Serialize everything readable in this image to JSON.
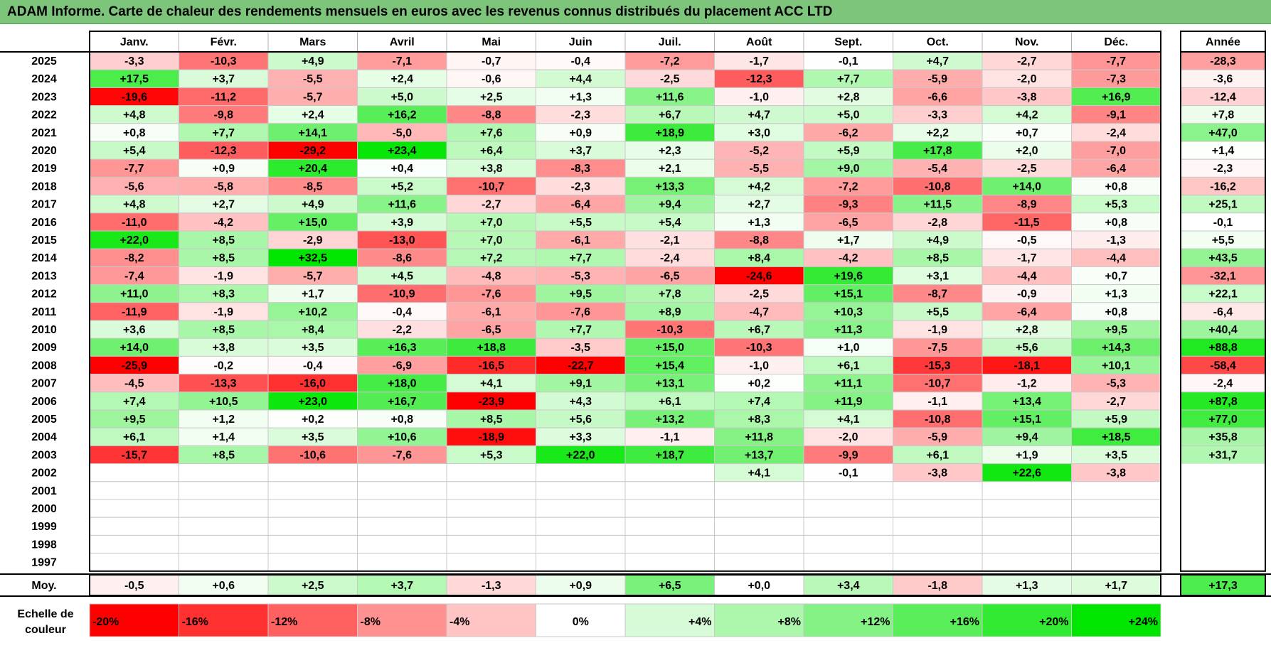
{
  "title": "ADAM Informe. Carte de chaleur des rendements mensuels en euros avec les revenus connus distribués du placement ACC LTD",
  "chart_data": {
    "type": "heatmap",
    "months": [
      "Janv.",
      "Févr.",
      "Mars",
      "Avril",
      "Mai",
      "Juin",
      "Juil.",
      "Août",
      "Sept.",
      "Oct.",
      "Nov.",
      "Déc."
    ],
    "year_column_label": "Année",
    "rows": [
      {
        "year": "2025",
        "values": [
          "-3,3",
          "-10,3",
          "+4,9",
          "-7,1",
          "-0,7",
          "-0,4",
          "-7,2",
          "-1,7",
          "-0,1",
          "+4,7",
          "-2,7",
          "-7,7"
        ],
        "annual": "-28,3"
      },
      {
        "year": "2024",
        "values": [
          "+17,5",
          "+3,7",
          "-5,5",
          "+2,4",
          "-0,6",
          "+4,4",
          "-2,5",
          "-12,3",
          "+7,7",
          "-5,9",
          "-2,0",
          "-7,3"
        ],
        "annual": "-3,6"
      },
      {
        "year": "2023",
        "values": [
          "-19,6",
          "-11,2",
          "-5,7",
          "+5,0",
          "+2,5",
          "+1,3",
          "+11,6",
          "-1,0",
          "+2,8",
          "-6,6",
          "-3,8",
          "+16,9"
        ],
        "annual": "-12,4"
      },
      {
        "year": "2022",
        "values": [
          "+4,8",
          "-9,8",
          "+2,4",
          "+16,2",
          "-8,8",
          "-2,3",
          "+6,7",
          "+4,7",
          "+5,0",
          "-3,3",
          "+4,2",
          "-9,1"
        ],
        "annual": "+7,8"
      },
      {
        "year": "2021",
        "values": [
          "+0,8",
          "+7,7",
          "+14,1",
          "-5,0",
          "+7,6",
          "+0,9",
          "+18,9",
          "+3,0",
          "-6,2",
          "+2,2",
          "+0,7",
          "-2,4"
        ],
        "annual": "+47,0"
      },
      {
        "year": "2020",
        "values": [
          "+5,4",
          "-12,3",
          "-29,2",
          "+23,4",
          "+6,4",
          "+3,7",
          "+2,3",
          "-5,2",
          "+5,9",
          "+17,8",
          "+2,0",
          "-7,0"
        ],
        "annual": "+1,4"
      },
      {
        "year": "2019",
        "values": [
          "-7,7",
          "+0,9",
          "+20,4",
          "+0,4",
          "+3,8",
          "-8,3",
          "+2,1",
          "-5,5",
          "+9,0",
          "-5,4",
          "-2,5",
          "-6,4"
        ],
        "annual": "-2,3"
      },
      {
        "year": "2018",
        "values": [
          "-5,6",
          "-5,8",
          "-8,5",
          "+5,2",
          "-10,7",
          "-2,3",
          "+13,3",
          "+4,2",
          "-7,2",
          "-10,8",
          "+14,0",
          "+0,8"
        ],
        "annual": "-16,2"
      },
      {
        "year": "2017",
        "values": [
          "+4,8",
          "+2,7",
          "+4,9",
          "+11,6",
          "-2,7",
          "-6,4",
          "+9,4",
          "+2,7",
          "-9,3",
          "+11,5",
          "-8,9",
          "+5,3"
        ],
        "annual": "+25,1"
      },
      {
        "year": "2016",
        "values": [
          "-11,0",
          "-4,2",
          "+15,0",
          "+3,9",
          "+7,0",
          "+5,5",
          "+5,4",
          "+1,3",
          "-6,5",
          "-2,8",
          "-11,5",
          "+0,8"
        ],
        "annual": "-0,1"
      },
      {
        "year": "2015",
        "values": [
          "+22,0",
          "+8,5",
          "-2,9",
          "-13,0",
          "+7,0",
          "-6,1",
          "-2,1",
          "-8,8",
          "+1,7",
          "+4,9",
          "-0,5",
          "-1,3"
        ],
        "annual": "+5,5"
      },
      {
        "year": "2014",
        "values": [
          "-8,2",
          "+8,5",
          "+32,5",
          "-8,6",
          "+7,2",
          "+7,7",
          "-2,4",
          "+8,4",
          "-4,2",
          "+8,5",
          "-1,7",
          "-4,4"
        ],
        "annual": "+43,5"
      },
      {
        "year": "2013",
        "values": [
          "-7,4",
          "-1,9",
          "-5,7",
          "+4,5",
          "-4,8",
          "-5,3",
          "-6,5",
          "-24,6",
          "+19,6",
          "+3,1",
          "-4,4",
          "+0,7"
        ],
        "annual": "-32,1"
      },
      {
        "year": "2012",
        "values": [
          "+11,0",
          "+8,3",
          "+1,7",
          "-10,9",
          "-7,6",
          "+9,5",
          "+7,8",
          "-2,5",
          "+15,1",
          "-8,7",
          "-0,9",
          "+1,3"
        ],
        "annual": "+22,1"
      },
      {
        "year": "2011",
        "values": [
          "-11,9",
          "-1,9",
          "+10,2",
          "-0,4",
          "-6,1",
          "-7,6",
          "+8,9",
          "-4,7",
          "+10,3",
          "+5,5",
          "-6,4",
          "+0,8"
        ],
        "annual": "-6,4"
      },
      {
        "year": "2010",
        "values": [
          "+3,6",
          "+8,5",
          "+8,4",
          "-2,2",
          "-6,5",
          "+7,7",
          "-10,3",
          "+6,7",
          "+11,3",
          "-1,9",
          "+2,8",
          "+9,5"
        ],
        "annual": "+40,4"
      },
      {
        "year": "2009",
        "values": [
          "+14,0",
          "+3,8",
          "+3,5",
          "+16,3",
          "+18,8",
          "-3,5",
          "+15,0",
          "-10,3",
          "+1,0",
          "-7,5",
          "+5,6",
          "+14,3"
        ],
        "annual": "+88,8"
      },
      {
        "year": "2008",
        "values": [
          "-25,9",
          "-0,2",
          "-0,4",
          "-6,9",
          "-16,5",
          "-22,7",
          "+15,4",
          "-1,0",
          "+6,1",
          "-15,3",
          "-18,1",
          "+10,1"
        ],
        "annual": "-58,4"
      },
      {
        "year": "2007",
        "values": [
          "-4,5",
          "-13,3",
          "-16,0",
          "+18,0",
          "+4,1",
          "+9,1",
          "+13,1",
          "+0,2",
          "+11,1",
          "-10,7",
          "-1,2",
          "-5,3"
        ],
        "annual": "-2,4"
      },
      {
        "year": "2006",
        "values": [
          "+7,4",
          "+10,5",
          "+23,0",
          "+16,7",
          "-23,9",
          "+4,3",
          "+6,1",
          "+7,4",
          "+11,9",
          "-1,1",
          "+13,4",
          "-2,7"
        ],
        "annual": "+87,8"
      },
      {
        "year": "2005",
        "values": [
          "+9,5",
          "+1,2",
          "+0,2",
          "+0,8",
          "+8,5",
          "+5,6",
          "+13,2",
          "+8,3",
          "+4,1",
          "-10,8",
          "+15,1",
          "+5,9"
        ],
        "annual": "+77,0"
      },
      {
        "year": "2004",
        "values": [
          "+6,1",
          "+1,4",
          "+3,5",
          "+10,6",
          "-18,9",
          "+3,3",
          "-1,1",
          "+11,8",
          "-2,0",
          "-5,9",
          "+9,4",
          "+18,5"
        ],
        "annual": "+35,8"
      },
      {
        "year": "2003",
        "values": [
          "-15,7",
          "+8,5",
          "-10,6",
          "-7,6",
          "+5,3",
          "+22,0",
          "+18,7",
          "+13,7",
          "-9,9",
          "+6,1",
          "+1,9",
          "+3,5"
        ],
        "annual": "+31,7"
      },
      {
        "year": "2002",
        "values": [
          "",
          "",
          "",
          "",
          "",
          "",
          "",
          "+4,1",
          "-0,1",
          "-3,8",
          "+22,6",
          "-3,8"
        ],
        "annual": ""
      },
      {
        "year": "2001",
        "values": [
          "",
          "",
          "",
          "",
          "",
          "",
          "",
          "",
          "",
          "",
          "",
          ""
        ],
        "annual": ""
      },
      {
        "year": "2000",
        "values": [
          "",
          "",
          "",
          "",
          "",
          "",
          "",
          "",
          "",
          "",
          "",
          ""
        ],
        "annual": ""
      },
      {
        "year": "1999",
        "values": [
          "",
          "",
          "",
          "",
          "",
          "",
          "",
          "",
          "",
          "",
          "",
          ""
        ],
        "annual": ""
      },
      {
        "year": "1998",
        "values": [
          "",
          "",
          "",
          "",
          "",
          "",
          "",
          "",
          "",
          "",
          "",
          ""
        ],
        "annual": ""
      },
      {
        "year": "1997",
        "values": [
          "",
          "",
          "",
          "",
          "",
          "",
          "",
          "",
          "",
          "",
          "",
          ""
        ],
        "annual": ""
      }
    ],
    "average": {
      "label": "Moy.",
      "values": [
        "-0,5",
        "+0,6",
        "+2,5",
        "+3,7",
        "-1,3",
        "+0,9",
        "+6,5",
        "+0,0",
        "+3,4",
        "-1,8",
        "+1,3",
        "+1,7"
      ],
      "annual": "+17,3"
    },
    "scale": {
      "label_line1": "Echelle de",
      "label_line2": "couleur",
      "steps": [
        {
          "label": "-20%",
          "value": -20,
          "color": "#ff0000"
        },
        {
          "label": "-16%",
          "value": -16,
          "color": "#ff3030"
        },
        {
          "label": "-12%",
          "value": -12,
          "color": "#ff6161"
        },
        {
          "label": "-8%",
          "value": -8,
          "color": "#ff9191"
        },
        {
          "label": "-4%",
          "value": -4,
          "color": "#ffc4c4"
        },
        {
          "label": "0%",
          "value": 0,
          "color": "#ffffff"
        },
        {
          "label": "+4%",
          "value": 4,
          "color": "#d6fbd6"
        },
        {
          "label": "+8%",
          "value": 8,
          "color": "#adf7ad"
        },
        {
          "label": "+12%",
          "value": 12,
          "color": "#84f284"
        },
        {
          "label": "+16%",
          "value": 16,
          "color": "#5aee5a"
        },
        {
          "label": "+20%",
          "value": 20,
          "color": "#31ea31"
        },
        {
          "label": "+24%",
          "value": 24,
          "color": "#00e600"
        }
      ]
    }
  }
}
